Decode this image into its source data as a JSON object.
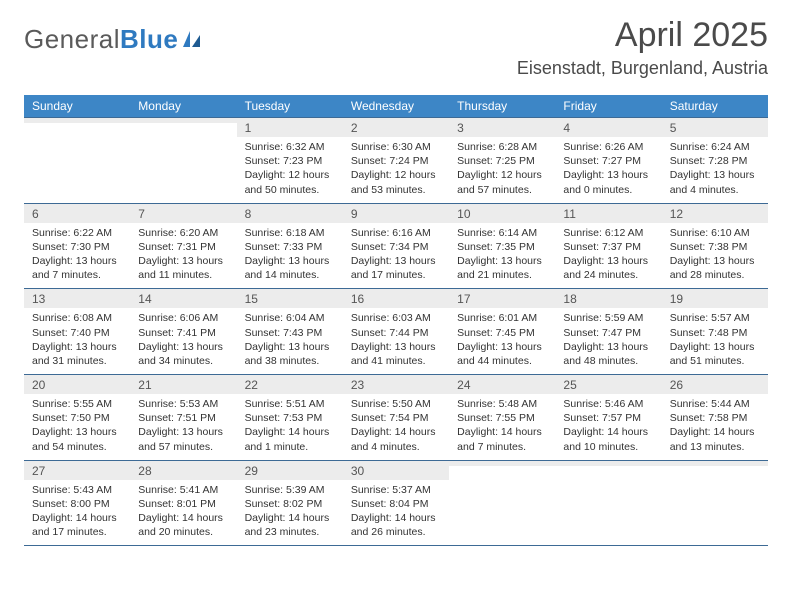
{
  "logo": {
    "word1": "General",
    "word2": "Blue"
  },
  "title": "April 2025",
  "location": "Eisenstadt, Burgenland, Austria",
  "colors": {
    "header_bg": "#3d86c6",
    "header_text": "#ffffff",
    "divider": "#3d6a95",
    "daynum_bg": "#ececec",
    "logo_blue": "#2f7ac0"
  },
  "days_of_week": [
    "Sunday",
    "Monday",
    "Tuesday",
    "Wednesday",
    "Thursday",
    "Friday",
    "Saturday"
  ],
  "weeks": [
    [
      {
        "n": "",
        "sunrise": "",
        "sunset": "",
        "daylight": ""
      },
      {
        "n": "",
        "sunrise": "",
        "sunset": "",
        "daylight": ""
      },
      {
        "n": "1",
        "sunrise": "Sunrise: 6:32 AM",
        "sunset": "Sunset: 7:23 PM",
        "daylight": "Daylight: 12 hours and 50 minutes."
      },
      {
        "n": "2",
        "sunrise": "Sunrise: 6:30 AM",
        "sunset": "Sunset: 7:24 PM",
        "daylight": "Daylight: 12 hours and 53 minutes."
      },
      {
        "n": "3",
        "sunrise": "Sunrise: 6:28 AM",
        "sunset": "Sunset: 7:25 PM",
        "daylight": "Daylight: 12 hours and 57 minutes."
      },
      {
        "n": "4",
        "sunrise": "Sunrise: 6:26 AM",
        "sunset": "Sunset: 7:27 PM",
        "daylight": "Daylight: 13 hours and 0 minutes."
      },
      {
        "n": "5",
        "sunrise": "Sunrise: 6:24 AM",
        "sunset": "Sunset: 7:28 PM",
        "daylight": "Daylight: 13 hours and 4 minutes."
      }
    ],
    [
      {
        "n": "6",
        "sunrise": "Sunrise: 6:22 AM",
        "sunset": "Sunset: 7:30 PM",
        "daylight": "Daylight: 13 hours and 7 minutes."
      },
      {
        "n": "7",
        "sunrise": "Sunrise: 6:20 AM",
        "sunset": "Sunset: 7:31 PM",
        "daylight": "Daylight: 13 hours and 11 minutes."
      },
      {
        "n": "8",
        "sunrise": "Sunrise: 6:18 AM",
        "sunset": "Sunset: 7:33 PM",
        "daylight": "Daylight: 13 hours and 14 minutes."
      },
      {
        "n": "9",
        "sunrise": "Sunrise: 6:16 AM",
        "sunset": "Sunset: 7:34 PM",
        "daylight": "Daylight: 13 hours and 17 minutes."
      },
      {
        "n": "10",
        "sunrise": "Sunrise: 6:14 AM",
        "sunset": "Sunset: 7:35 PM",
        "daylight": "Daylight: 13 hours and 21 minutes."
      },
      {
        "n": "11",
        "sunrise": "Sunrise: 6:12 AM",
        "sunset": "Sunset: 7:37 PM",
        "daylight": "Daylight: 13 hours and 24 minutes."
      },
      {
        "n": "12",
        "sunrise": "Sunrise: 6:10 AM",
        "sunset": "Sunset: 7:38 PM",
        "daylight": "Daylight: 13 hours and 28 minutes."
      }
    ],
    [
      {
        "n": "13",
        "sunrise": "Sunrise: 6:08 AM",
        "sunset": "Sunset: 7:40 PM",
        "daylight": "Daylight: 13 hours and 31 minutes."
      },
      {
        "n": "14",
        "sunrise": "Sunrise: 6:06 AM",
        "sunset": "Sunset: 7:41 PM",
        "daylight": "Daylight: 13 hours and 34 minutes."
      },
      {
        "n": "15",
        "sunrise": "Sunrise: 6:04 AM",
        "sunset": "Sunset: 7:43 PM",
        "daylight": "Daylight: 13 hours and 38 minutes."
      },
      {
        "n": "16",
        "sunrise": "Sunrise: 6:03 AM",
        "sunset": "Sunset: 7:44 PM",
        "daylight": "Daylight: 13 hours and 41 minutes."
      },
      {
        "n": "17",
        "sunrise": "Sunrise: 6:01 AM",
        "sunset": "Sunset: 7:45 PM",
        "daylight": "Daylight: 13 hours and 44 minutes."
      },
      {
        "n": "18",
        "sunrise": "Sunrise: 5:59 AM",
        "sunset": "Sunset: 7:47 PM",
        "daylight": "Daylight: 13 hours and 48 minutes."
      },
      {
        "n": "19",
        "sunrise": "Sunrise: 5:57 AM",
        "sunset": "Sunset: 7:48 PM",
        "daylight": "Daylight: 13 hours and 51 minutes."
      }
    ],
    [
      {
        "n": "20",
        "sunrise": "Sunrise: 5:55 AM",
        "sunset": "Sunset: 7:50 PM",
        "daylight": "Daylight: 13 hours and 54 minutes."
      },
      {
        "n": "21",
        "sunrise": "Sunrise: 5:53 AM",
        "sunset": "Sunset: 7:51 PM",
        "daylight": "Daylight: 13 hours and 57 minutes."
      },
      {
        "n": "22",
        "sunrise": "Sunrise: 5:51 AM",
        "sunset": "Sunset: 7:53 PM",
        "daylight": "Daylight: 14 hours and 1 minute."
      },
      {
        "n": "23",
        "sunrise": "Sunrise: 5:50 AM",
        "sunset": "Sunset: 7:54 PM",
        "daylight": "Daylight: 14 hours and 4 minutes."
      },
      {
        "n": "24",
        "sunrise": "Sunrise: 5:48 AM",
        "sunset": "Sunset: 7:55 PM",
        "daylight": "Daylight: 14 hours and 7 minutes."
      },
      {
        "n": "25",
        "sunrise": "Sunrise: 5:46 AM",
        "sunset": "Sunset: 7:57 PM",
        "daylight": "Daylight: 14 hours and 10 minutes."
      },
      {
        "n": "26",
        "sunrise": "Sunrise: 5:44 AM",
        "sunset": "Sunset: 7:58 PM",
        "daylight": "Daylight: 14 hours and 13 minutes."
      }
    ],
    [
      {
        "n": "27",
        "sunrise": "Sunrise: 5:43 AM",
        "sunset": "Sunset: 8:00 PM",
        "daylight": "Daylight: 14 hours and 17 minutes."
      },
      {
        "n": "28",
        "sunrise": "Sunrise: 5:41 AM",
        "sunset": "Sunset: 8:01 PM",
        "daylight": "Daylight: 14 hours and 20 minutes."
      },
      {
        "n": "29",
        "sunrise": "Sunrise: 5:39 AM",
        "sunset": "Sunset: 8:02 PM",
        "daylight": "Daylight: 14 hours and 23 minutes."
      },
      {
        "n": "30",
        "sunrise": "Sunrise: 5:37 AM",
        "sunset": "Sunset: 8:04 PM",
        "daylight": "Daylight: 14 hours and 26 minutes."
      },
      {
        "n": "",
        "sunrise": "",
        "sunset": "",
        "daylight": ""
      },
      {
        "n": "",
        "sunrise": "",
        "sunset": "",
        "daylight": ""
      },
      {
        "n": "",
        "sunrise": "",
        "sunset": "",
        "daylight": ""
      }
    ]
  ]
}
